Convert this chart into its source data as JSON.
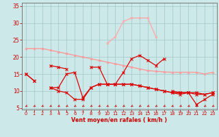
{
  "x": [
    0,
    1,
    2,
    3,
    4,
    5,
    6,
    7,
    8,
    9,
    10,
    11,
    12,
    13,
    14,
    15,
    16,
    17,
    18,
    19,
    20,
    21,
    22,
    23
  ],
  "line1": [
    22.5,
    22.5,
    22.5,
    22.0,
    21.5,
    21.0,
    20.5,
    20.0,
    19.5,
    19.0,
    18.5,
    18.0,
    17.5,
    17.0,
    16.5,
    16.0,
    15.8,
    15.6,
    15.5,
    15.5,
    15.5,
    15.5,
    15.0,
    15.5
  ],
  "line2": [
    null,
    null,
    null,
    null,
    null,
    null,
    null,
    null,
    null,
    null,
    24.0,
    26.0,
    30.5,
    31.5,
    31.5,
    31.5,
    26.0,
    null,
    null,
    null,
    null,
    null,
    null,
    null
  ],
  "line3_full": [
    15.0,
    13.0,
    null,
    11.0,
    11.0,
    15.0,
    15.5,
    8.0,
    11.0,
    12.0,
    12.0,
    12.0,
    15.5,
    19.5,
    20.5,
    19.0,
    17.5,
    19.5,
    null,
    null,
    null,
    null,
    null,
    null
  ],
  "line4": [
    15.0,
    13.0,
    null,
    11.0,
    10.0,
    9.5,
    7.5,
    7.5,
    11.0,
    12.0,
    12.0,
    12.0,
    12.0,
    12.0,
    11.5,
    11.0,
    10.5,
    10.0,
    9.5,
    9.5,
    9.5,
    9.5,
    9.0,
    9.5
  ],
  "line5": [
    null,
    null,
    null,
    null,
    null,
    null,
    null,
    null,
    null,
    null,
    null,
    null,
    null,
    null,
    null,
    null,
    null,
    null,
    10.0,
    9.5,
    9.5,
    6.0,
    7.5,
    9.0
  ],
  "line6": [
    null,
    null,
    null,
    17.5,
    17.0,
    16.5,
    null,
    null,
    17.0,
    17.0,
    12.0,
    12.0,
    12.0,
    12.0,
    11.5,
    11.0,
    10.5,
    10.0,
    9.5,
    9.0,
    9.5,
    9.0,
    9.0,
    9.5
  ],
  "bg_color": "#cce8e8",
  "grid_color": "#a0c8c8",
  "line1_color": "#ff9999",
  "line2_color": "#ffaaaa",
  "dark_red": "#dd0000",
  "arrow_color": "#cc0000",
  "axis_color": "#cc0000",
  "xlabel": "Vent moyen/en rafales ( km/h )",
  "xlim": [
    0,
    23
  ],
  "ylim": [
    4.5,
    36
  ],
  "yticks": [
    5,
    10,
    15,
    20,
    25,
    30,
    35
  ],
  "xticks": [
    0,
    1,
    2,
    3,
    4,
    5,
    6,
    7,
    8,
    9,
    10,
    11,
    12,
    13,
    14,
    15,
    16,
    17,
    18,
    19,
    20,
    21,
    22,
    23
  ]
}
